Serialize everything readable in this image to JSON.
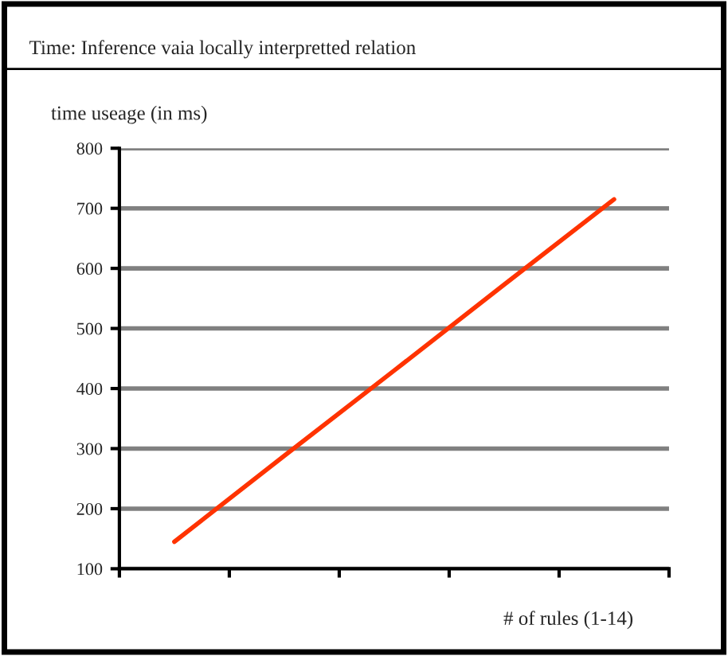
{
  "chart_data": {
    "type": "line",
    "title": "Time: Inference vaia locally interpretted relation",
    "ylabel": "time useage (in ms)",
    "xlabel": "# of rules (1-14)",
    "categories": [
      null,
      null,
      null,
      null,
      null
    ],
    "series": [
      {
        "color": "#ff3300",
        "values": [
          145,
          288,
          430,
          573,
          715
        ]
      }
    ],
    "ylim": [
      100,
      800
    ],
    "yticks": [
      100,
      200,
      300,
      400,
      500,
      600,
      700,
      800
    ],
    "grid": "y",
    "legend": false,
    "marker": "none",
    "line_style": "solid"
  }
}
